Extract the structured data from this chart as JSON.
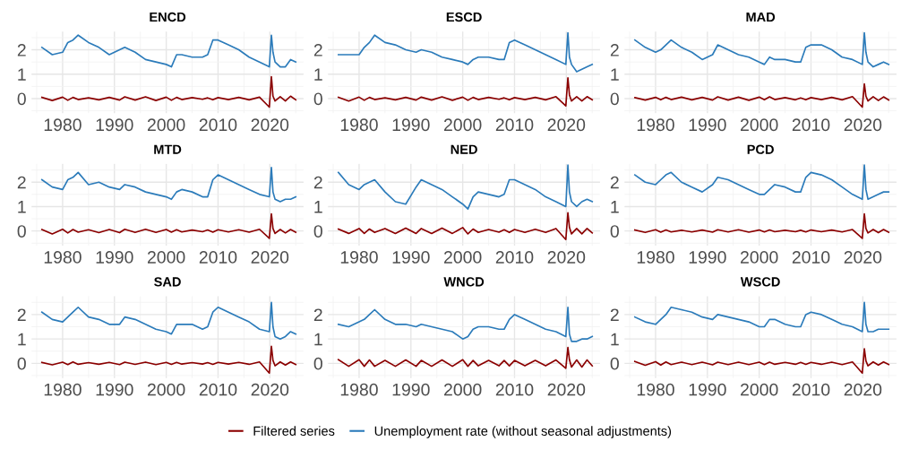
{
  "chart_data": [
    {
      "type": "line",
      "title": "ENCD",
      "x": [
        1976,
        1978,
        1980,
        1981,
        1982,
        1983,
        1985,
        1987,
        1989,
        1991,
        1992,
        1994,
        1996,
        1998,
        2000,
        2001,
        2002,
        2003,
        2005,
        2007,
        2008,
        2009,
        2010,
        2012,
        2014,
        2016,
        2018,
        2019.9,
        2020.3,
        2020.6,
        2021,
        2022,
        2023,
        2024,
        2025
      ],
      "xlim": [
        1974,
        2026.5
      ],
      "xticks": [
        {
          "value": 1975,
          "label": null
        },
        1980,
        {
          "value": 1985,
          "label": null
        },
        1990,
        {
          "value": 1995,
          "label": null
        },
        2000,
        {
          "value": 2005,
          "label": null
        },
        2010,
        {
          "value": 2015,
          "label": null
        },
        2020,
        {
          "value": 2025,
          "label": null
        }
      ],
      "ylim": [
        -0.6,
        2.75
      ],
      "yticks": [
        {
          "value": -0.5,
          "label": null
        },
        0,
        {
          "value": 0.5,
          "label": null
        },
        1,
        {
          "value": 1.5,
          "label": null
        },
        2,
        {
          "value": 2.5,
          "label": null
        }
      ],
      "grid": true,
      "legend": "bottom",
      "series": [
        {
          "name": "Filtered series",
          "color": "#8b0000",
          "values": [
            0.05,
            -0.08,
            0.06,
            -0.07,
            0.05,
            -0.04,
            0.03,
            -0.05,
            0.05,
            -0.06,
            0.07,
            -0.06,
            0.07,
            -0.08,
            0.06,
            -0.07,
            0.05,
            -0.04,
            0.04,
            -0.03,
            0.03,
            -0.05,
            0.04,
            -0.04,
            0.05,
            -0.05,
            0.06,
            -0.35,
            0.9,
            0.1,
            -0.1,
            0.08,
            -0.1,
            0.1,
            -0.05
          ]
        },
        {
          "name": "Unemployment rate (without seasonal adjustments)",
          "color": "#2b7bba",
          "values": [
            2.1,
            1.8,
            1.9,
            2.3,
            2.4,
            2.6,
            2.3,
            2.1,
            1.8,
            2.0,
            2.1,
            1.9,
            1.6,
            1.5,
            1.4,
            1.3,
            1.8,
            1.8,
            1.7,
            1.7,
            1.8,
            2.4,
            2.4,
            2.2,
            2.0,
            1.7,
            1.5,
            1.3,
            2.6,
            1.9,
            1.5,
            1.3,
            1.3,
            1.6,
            1.5
          ]
        }
      ]
    },
    {
      "type": "line",
      "title": "ESCD",
      "x": [
        1976,
        1978,
        1980,
        1981,
        1982,
        1983,
        1985,
        1987,
        1989,
        1991,
        1992,
        1994,
        1996,
        1998,
        2000,
        2001,
        2002,
        2003,
        2005,
        2007,
        2008,
        2009,
        2010,
        2012,
        2014,
        2016,
        2018,
        2019.9,
        2020.3,
        2020.6,
        2021,
        2022,
        2023,
        2024,
        2025
      ],
      "xlim": [
        1974,
        2026.5
      ],
      "xticks": [
        {
          "value": 1975,
          "label": null
        },
        1980,
        {
          "value": 1985,
          "label": null
        },
        1990,
        {
          "value": 1995,
          "label": null
        },
        2000,
        {
          "value": 2005,
          "label": null
        },
        2010,
        {
          "value": 2015,
          "label": null
        },
        2020,
        {
          "value": 2025,
          "label": null
        }
      ],
      "ylim": [
        -0.6,
        2.75
      ],
      "yticks": [
        {
          "value": -0.5,
          "label": null
        },
        0,
        {
          "value": 0.5,
          "label": null
        },
        1,
        {
          "value": 1.5,
          "label": null
        },
        2,
        {
          "value": 2.5,
          "label": null
        }
      ],
      "grid": true,
      "legend": "bottom",
      "series": [
        {
          "name": "Filtered series",
          "color": "#8b0000",
          "values": [
            0.05,
            -0.1,
            0.06,
            -0.07,
            0.05,
            -0.04,
            0.03,
            -0.05,
            0.05,
            -0.06,
            0.06,
            -0.06,
            0.07,
            -0.07,
            0.06,
            -0.07,
            0.05,
            -0.04,
            0.05,
            -0.03,
            0.03,
            -0.05,
            0.04,
            -0.04,
            0.05,
            -0.05,
            0.08,
            -0.3,
            0.85,
            0.15,
            -0.1,
            0.08,
            -0.1,
            0.08,
            -0.05
          ]
        },
        {
          "name": "Unemployment rate (without seasonal adjustments)",
          "color": "#2b7bba",
          "values": [
            1.8,
            1.8,
            1.8,
            2.1,
            2.3,
            2.6,
            2.3,
            2.2,
            2.0,
            1.9,
            2.0,
            1.9,
            1.7,
            1.6,
            1.5,
            1.4,
            1.6,
            1.7,
            1.7,
            1.6,
            1.6,
            2.3,
            2.4,
            2.2,
            2.0,
            1.8,
            1.6,
            1.4,
            2.7,
            1.7,
            1.4,
            1.1,
            1.2,
            1.3,
            1.4
          ]
        }
      ]
    },
    {
      "type": "line",
      "title": "MAD",
      "x": [
        1976,
        1978,
        1980,
        1981,
        1982,
        1983,
        1985,
        1987,
        1989,
        1991,
        1992,
        1994,
        1996,
        1998,
        2000,
        2001,
        2002,
        2003,
        2005,
        2007,
        2008,
        2009,
        2010,
        2012,
        2014,
        2016,
        2018,
        2019.9,
        2020.3,
        2020.6,
        2021,
        2022,
        2023,
        2024,
        2025
      ],
      "xlim": [
        1974,
        2026.5
      ],
      "xticks": [
        {
          "value": 1975,
          "label": null
        },
        1980,
        {
          "value": 1985,
          "label": null
        },
        1990,
        {
          "value": 1995,
          "label": null
        },
        2000,
        {
          "value": 2005,
          "label": null
        },
        2010,
        {
          "value": 2015,
          "label": null
        },
        2020,
        {
          "value": 2025,
          "label": null
        }
      ],
      "ylim": [
        -0.6,
        2.75
      ],
      "yticks": [
        {
          "value": -0.5,
          "label": null
        },
        0,
        {
          "value": 0.5,
          "label": null
        },
        1,
        {
          "value": 1.5,
          "label": null
        },
        2,
        {
          "value": 2.5,
          "label": null
        }
      ],
      "grid": true,
      "legend": "bottom",
      "series": [
        {
          "name": "Filtered series",
          "color": "#8b0000",
          "values": [
            0.04,
            -0.06,
            0.05,
            -0.05,
            0.05,
            -0.04,
            0.06,
            -0.05,
            0.05,
            -0.06,
            0.07,
            -0.06,
            0.06,
            -0.07,
            0.06,
            -0.05,
            0.07,
            -0.04,
            0.04,
            -0.05,
            0.03,
            -0.05,
            0.04,
            -0.04,
            0.05,
            -0.05,
            0.08,
            -0.35,
            0.6,
            0.1,
            -0.1,
            0.08,
            -0.08,
            0.07,
            -0.06
          ]
        },
        {
          "name": "Unemployment rate (without seasonal adjustments)",
          "color": "#2b7bba",
          "values": [
            2.4,
            2.1,
            1.9,
            2.0,
            2.2,
            2.4,
            2.1,
            1.9,
            1.6,
            1.8,
            2.2,
            2.0,
            1.8,
            1.7,
            1.5,
            1.4,
            1.7,
            1.6,
            1.6,
            1.5,
            1.5,
            2.1,
            2.2,
            2.2,
            2.0,
            1.7,
            1.6,
            1.4,
            2.7,
            1.9,
            1.5,
            1.3,
            1.4,
            1.5,
            1.4
          ]
        }
      ]
    },
    {
      "type": "line",
      "title": "MTD",
      "x": [
        1976,
        1978,
        1980,
        1981,
        1982,
        1983,
        1985,
        1987,
        1989,
        1991,
        1992,
        1994,
        1996,
        1998,
        2000,
        2001,
        2002,
        2003,
        2005,
        2007,
        2008,
        2009,
        2010,
        2012,
        2014,
        2016,
        2018,
        2019.9,
        2020.3,
        2020.6,
        2021,
        2022,
        2023,
        2024,
        2025
      ],
      "xlim": [
        1974,
        2026.5
      ],
      "xticks": [
        {
          "value": 1975,
          "label": null
        },
        1980,
        {
          "value": 1985,
          "label": null
        },
        1990,
        {
          "value": 1995,
          "label": null
        },
        2000,
        {
          "value": 2005,
          "label": null
        },
        2010,
        {
          "value": 2015,
          "label": null
        },
        2020,
        {
          "value": 2025,
          "label": null
        }
      ],
      "ylim": [
        -0.6,
        2.75
      ],
      "yticks": [
        {
          "value": -0.5,
          "label": null
        },
        0,
        {
          "value": 0.5,
          "label": null
        },
        1,
        {
          "value": 1.5,
          "label": null
        },
        2,
        {
          "value": 2.5,
          "label": null
        }
      ],
      "grid": true,
      "legend": "bottom",
      "series": [
        {
          "name": "Filtered series",
          "color": "#8b0000",
          "values": [
            0.06,
            -0.12,
            0.07,
            -0.08,
            0.06,
            -0.05,
            0.05,
            -0.07,
            0.06,
            -0.07,
            0.07,
            -0.06,
            0.07,
            -0.06,
            0.06,
            -0.05,
            0.05,
            -0.04,
            0.04,
            -0.03,
            0.04,
            -0.05,
            0.05,
            -0.04,
            0.05,
            -0.05,
            0.07,
            -0.3,
            0.7,
            0.1,
            -0.1,
            0.06,
            -0.08,
            0.06,
            -0.05
          ]
        },
        {
          "name": "Unemployment rate (without seasonal adjustments)",
          "color": "#2b7bba",
          "values": [
            2.1,
            1.8,
            1.7,
            2.1,
            2.2,
            2.4,
            1.9,
            2.0,
            1.8,
            1.7,
            1.9,
            1.8,
            1.6,
            1.5,
            1.4,
            1.3,
            1.6,
            1.7,
            1.6,
            1.4,
            1.4,
            2.1,
            2.3,
            2.1,
            1.9,
            1.7,
            1.5,
            1.4,
            2.6,
            1.6,
            1.3,
            1.2,
            1.3,
            1.3,
            1.4
          ]
        }
      ]
    },
    {
      "type": "line",
      "title": "NED",
      "x": [
        1976,
        1978,
        1980,
        1981,
        1982,
        1983,
        1985,
        1987,
        1989,
        1991,
        1992,
        1994,
        1996,
        1998,
        2000,
        2001,
        2002,
        2003,
        2005,
        2007,
        2008,
        2009,
        2010,
        2012,
        2014,
        2016,
        2018,
        2019.9,
        2020.3,
        2020.6,
        2021,
        2022,
        2023,
        2024,
        2025
      ],
      "xlim": [
        1974,
        2026.5
      ],
      "xticks": [
        {
          "value": 1975,
          "label": null
        },
        1980,
        {
          "value": 1985,
          "label": null
        },
        1990,
        {
          "value": 1995,
          "label": null
        },
        2000,
        {
          "value": 2005,
          "label": null
        },
        2010,
        {
          "value": 2015,
          "label": null
        },
        2020,
        {
          "value": 2025,
          "label": null
        }
      ],
      "ylim": [
        -0.6,
        2.75
      ],
      "yticks": [
        {
          "value": -0.5,
          "label": null
        },
        0,
        {
          "value": 0.5,
          "label": null
        },
        1,
        {
          "value": 1.5,
          "label": null
        },
        2,
        {
          "value": 2.5,
          "label": null
        }
      ],
      "grid": true,
      "legend": "bottom",
      "series": [
        {
          "name": "Filtered series",
          "color": "#8b0000",
          "values": [
            0.08,
            -0.1,
            0.1,
            -0.1,
            0.08,
            -0.06,
            0.1,
            -0.1,
            0.12,
            -0.1,
            0.1,
            -0.1,
            0.12,
            -0.1,
            0.14,
            -0.12,
            0.08,
            -0.06,
            0.06,
            -0.05,
            0.05,
            -0.06,
            0.06,
            -0.06,
            0.07,
            -0.06,
            0.1,
            -0.35,
            0.75,
            0.15,
            -0.12,
            0.1,
            -0.12,
            0.1,
            -0.08
          ]
        },
        {
          "name": "Unemployment rate (without seasonal adjustments)",
          "color": "#2b7bba",
          "values": [
            2.4,
            1.9,
            1.7,
            1.9,
            2.0,
            2.1,
            1.6,
            1.2,
            1.1,
            1.8,
            2.1,
            1.9,
            1.7,
            1.4,
            1.1,
            0.9,
            1.4,
            1.6,
            1.5,
            1.4,
            1.5,
            2.1,
            2.1,
            1.9,
            1.7,
            1.4,
            1.2,
            1.0,
            2.7,
            1.6,
            1.2,
            1.0,
            1.2,
            1.3,
            1.2
          ]
        }
      ]
    },
    {
      "type": "line",
      "title": "PCD",
      "x": [
        1976,
        1978,
        1980,
        1981,
        1982,
        1983,
        1985,
        1987,
        1989,
        1991,
        1992,
        1994,
        1996,
        1998,
        2000,
        2001,
        2002,
        2003,
        2005,
        2007,
        2008,
        2009,
        2010,
        2012,
        2014,
        2016,
        2018,
        2019.9,
        2020.3,
        2020.6,
        2021,
        2022,
        2023,
        2024,
        2025
      ],
      "xlim": [
        1974,
        2026.5
      ],
      "xticks": [
        {
          "value": 1975,
          "label": null
        },
        1980,
        {
          "value": 1985,
          "label": null
        },
        1990,
        {
          "value": 1995,
          "label": null
        },
        2000,
        {
          "value": 2005,
          "label": null
        },
        2010,
        {
          "value": 2015,
          "label": null
        },
        2020,
        {
          "value": 2025,
          "label": null
        }
      ],
      "ylim": [
        -0.6,
        2.75
      ],
      "yticks": [
        {
          "value": -0.5,
          "label": null
        },
        0,
        {
          "value": 0.5,
          "label": null
        },
        1,
        {
          "value": 1.5,
          "label": null
        },
        2,
        {
          "value": 2.5,
          "label": null
        }
      ],
      "grid": true,
      "legend": "bottom",
      "series": [
        {
          "name": "Filtered series",
          "color": "#8b0000",
          "values": [
            0.04,
            -0.06,
            0.05,
            -0.05,
            0.04,
            -0.04,
            0.03,
            -0.04,
            0.04,
            -0.05,
            0.05,
            -0.04,
            0.05,
            -0.05,
            0.04,
            -0.04,
            0.04,
            -0.03,
            0.03,
            -0.03,
            0.03,
            -0.04,
            0.04,
            -0.03,
            0.04,
            -0.04,
            0.06,
            -0.3,
            0.7,
            0.1,
            -0.08,
            0.06,
            -0.07,
            0.06,
            -0.05
          ]
        },
        {
          "name": "Unemployment rate (without seasonal adjustments)",
          "color": "#2b7bba",
          "values": [
            2.3,
            2.0,
            1.9,
            2.1,
            2.3,
            2.4,
            2.0,
            1.8,
            1.6,
            1.9,
            2.2,
            2.1,
            1.9,
            1.7,
            1.5,
            1.5,
            1.7,
            1.9,
            1.8,
            1.6,
            1.6,
            2.2,
            2.4,
            2.3,
            2.1,
            1.8,
            1.5,
            1.3,
            2.7,
            1.7,
            1.3,
            1.4,
            1.5,
            1.6,
            1.6
          ]
        }
      ]
    },
    {
      "type": "line",
      "title": "SAD",
      "x": [
        1976,
        1978,
        1980,
        1981,
        1982,
        1983,
        1985,
        1987,
        1989,
        1991,
        1992,
        1994,
        1996,
        1998,
        2000,
        2001,
        2002,
        2003,
        2005,
        2007,
        2008,
        2009,
        2010,
        2012,
        2014,
        2016,
        2018,
        2019.9,
        2020.3,
        2020.6,
        2021,
        2022,
        2023,
        2024,
        2025
      ],
      "xlim": [
        1974,
        2026.5
      ],
      "xticks": [
        {
          "value": 1975,
          "label": null
        },
        1980,
        {
          "value": 1985,
          "label": null
        },
        1990,
        {
          "value": 1995,
          "label": null
        },
        2000,
        {
          "value": 2005,
          "label": null
        },
        2010,
        {
          "value": 2015,
          "label": null
        },
        2020,
        {
          "value": 2025,
          "label": null
        }
      ],
      "ylim": [
        -0.6,
        2.75
      ],
      "yticks": [
        {
          "value": -0.5,
          "label": null
        },
        0,
        {
          "value": 0.5,
          "label": null
        },
        1,
        {
          "value": 1.5,
          "label": null
        },
        2,
        {
          "value": 2.5,
          "label": null
        }
      ],
      "grid": true,
      "legend": "bottom",
      "series": [
        {
          "name": "Filtered series",
          "color": "#8b0000",
          "values": [
            0.04,
            -0.06,
            0.05,
            -0.05,
            0.06,
            -0.04,
            0.03,
            -0.04,
            0.04,
            -0.05,
            0.05,
            -0.04,
            0.05,
            -0.05,
            0.04,
            -0.04,
            0.04,
            -0.03,
            0.03,
            -0.03,
            0.03,
            -0.04,
            0.04,
            -0.03,
            0.04,
            -0.04,
            0.06,
            -0.4,
            0.7,
            0.12,
            -0.1,
            0.06,
            -0.07,
            0.06,
            -0.05
          ]
        },
        {
          "name": "Unemployment rate (without seasonal adjustments)",
          "color": "#2b7bba",
          "values": [
            2.1,
            1.8,
            1.7,
            1.9,
            2.1,
            2.3,
            1.9,
            1.8,
            1.6,
            1.6,
            1.9,
            1.8,
            1.6,
            1.4,
            1.3,
            1.2,
            1.6,
            1.6,
            1.6,
            1.4,
            1.5,
            2.1,
            2.3,
            2.1,
            1.9,
            1.7,
            1.4,
            1.3,
            2.5,
            1.5,
            1.1,
            1.0,
            1.1,
            1.3,
            1.2
          ]
        }
      ]
    },
    {
      "type": "line",
      "title": "WNCD",
      "x": [
        1976,
        1978,
        1980,
        1981,
        1982,
        1983,
        1985,
        1987,
        1989,
        1991,
        1992,
        1994,
        1996,
        1998,
        2000,
        2001,
        2002,
        2003,
        2005,
        2007,
        2008,
        2009,
        2010,
        2012,
        2014,
        2016,
        2018,
        2019.9,
        2020.3,
        2020.6,
        2021,
        2022,
        2023,
        2024,
        2025
      ],
      "xlim": [
        1974,
        2026.5
      ],
      "xticks": [
        {
          "value": 1975,
          "label": null
        },
        1980,
        {
          "value": 1985,
          "label": null
        },
        1990,
        {
          "value": 1995,
          "label": null
        },
        2000,
        {
          "value": 2005,
          "label": null
        },
        2010,
        {
          "value": 2015,
          "label": null
        },
        2020,
        {
          "value": 2025,
          "label": null
        }
      ],
      "ylim": [
        -0.6,
        2.75
      ],
      "yticks": [
        {
          "value": -0.5,
          "label": null
        },
        0,
        {
          "value": 0.5,
          "label": null
        },
        1,
        {
          "value": 1.5,
          "label": null
        },
        2,
        {
          "value": 2.5,
          "label": null
        }
      ],
      "grid": true,
      "legend": "bottom",
      "series": [
        {
          "name": "Filtered series",
          "color": "#8b0000",
          "values": [
            0.15,
            -0.12,
            0.15,
            -0.12,
            0.14,
            -0.12,
            0.12,
            -0.12,
            0.14,
            -0.12,
            0.12,
            -0.12,
            0.14,
            -0.12,
            0.15,
            -0.12,
            0.12,
            -0.1,
            0.12,
            -0.1,
            0.12,
            -0.1,
            0.12,
            -0.1,
            0.12,
            -0.1,
            0.14,
            -0.2,
            0.65,
            0.15,
            -0.15,
            0.14,
            -0.15,
            0.14,
            -0.1
          ]
        },
        {
          "name": "Unemployment rate (without seasonal adjustments)",
          "color": "#2b7bba",
          "values": [
            1.6,
            1.5,
            1.7,
            1.8,
            2.0,
            2.2,
            1.8,
            1.6,
            1.6,
            1.5,
            1.6,
            1.5,
            1.4,
            1.3,
            1.0,
            1.1,
            1.4,
            1.5,
            1.5,
            1.4,
            1.4,
            1.8,
            2.0,
            1.8,
            1.6,
            1.4,
            1.3,
            1.1,
            2.3,
            1.2,
            0.9,
            0.9,
            1.0,
            1.0,
            1.1
          ]
        }
      ]
    },
    {
      "type": "line",
      "title": "WSCD",
      "x": [
        1976,
        1978,
        1980,
        1981,
        1982,
        1983,
        1985,
        1987,
        1989,
        1991,
        1992,
        1994,
        1996,
        1998,
        2000,
        2001,
        2002,
        2003,
        2005,
        2007,
        2008,
        2009,
        2010,
        2012,
        2014,
        2016,
        2018,
        2019.9,
        2020.3,
        2020.6,
        2021,
        2022,
        2023,
        2024,
        2025
      ],
      "xlim": [
        1974,
        2026.5
      ],
      "xticks": [
        {
          "value": 1975,
          "label": null
        },
        1980,
        {
          "value": 1985,
          "label": null
        },
        1990,
        {
          "value": 1995,
          "label": null
        },
        2000,
        {
          "value": 2005,
          "label": null
        },
        2010,
        {
          "value": 2015,
          "label": null
        },
        2020,
        {
          "value": 2025,
          "label": null
        }
      ],
      "ylim": [
        -0.6,
        2.75
      ],
      "yticks": [
        {
          "value": -0.5,
          "label": null
        },
        0,
        {
          "value": 0.5,
          "label": null
        },
        1,
        {
          "value": 1.5,
          "label": null
        },
        2,
        {
          "value": 2.5,
          "label": null
        }
      ],
      "grid": true,
      "legend": "bottom",
      "series": [
        {
          "name": "Filtered series",
          "color": "#8b0000",
          "values": [
            0.08,
            -0.08,
            0.07,
            -0.07,
            0.06,
            -0.05,
            0.05,
            -0.05,
            0.05,
            -0.06,
            0.05,
            -0.05,
            0.05,
            -0.05,
            0.05,
            -0.05,
            0.05,
            -0.04,
            0.04,
            -0.04,
            0.04,
            -0.04,
            0.04,
            -0.04,
            0.05,
            -0.05,
            0.06,
            -0.4,
            0.6,
            0.1,
            -0.1,
            0.06,
            -0.07,
            0.06,
            -0.05
          ]
        },
        {
          "name": "Unemployment rate (without seasonal adjustments)",
          "color": "#2b7bba",
          "values": [
            1.9,
            1.7,
            1.6,
            1.8,
            2.0,
            2.3,
            2.2,
            2.1,
            1.9,
            1.8,
            2.0,
            1.9,
            1.8,
            1.7,
            1.5,
            1.5,
            1.8,
            1.8,
            1.6,
            1.5,
            1.5,
            2.0,
            2.1,
            2.0,
            1.8,
            1.6,
            1.5,
            1.3,
            2.5,
            1.6,
            1.3,
            1.3,
            1.4,
            1.4,
            1.4
          ]
        }
      ]
    }
  ]
}
